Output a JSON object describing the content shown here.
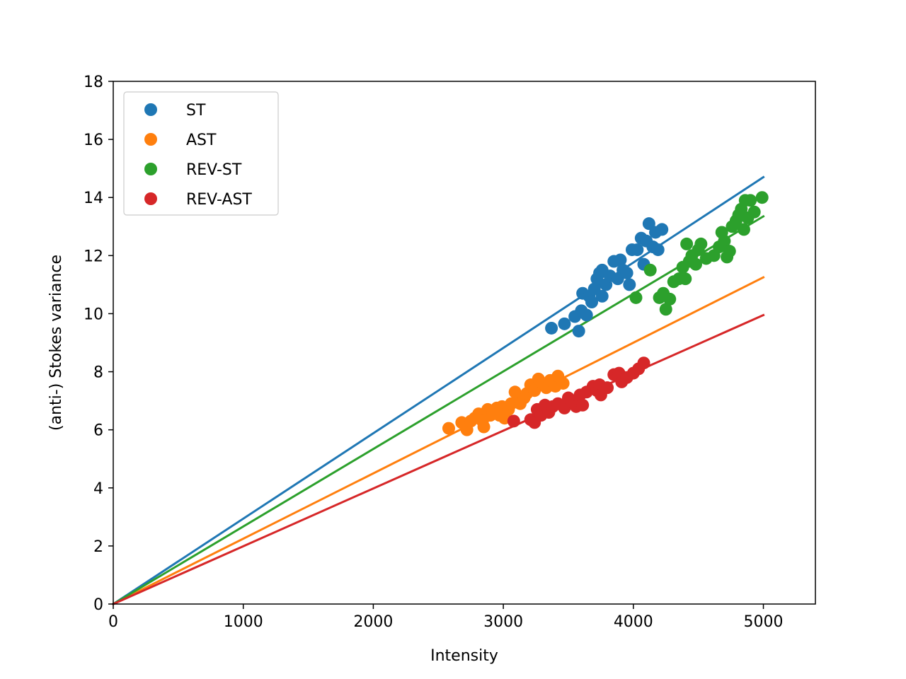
{
  "chart_data": {
    "type": "scatter",
    "xlabel": "Intensity",
    "ylabel": "(anti-) Stokes variance",
    "xlim": [
      0,
      5400
    ],
    "ylim": [
      0,
      18
    ],
    "xticks": [
      0,
      1000,
      2000,
      3000,
      4000,
      5000
    ],
    "yticks": [
      0,
      2,
      4,
      6,
      8,
      10,
      12,
      14,
      16,
      18
    ],
    "grid": false,
    "legend_position": "upper-left",
    "series": [
      {
        "name": "ST",
        "color": "#1f77b4",
        "fit_line": {
          "x": [
            0,
            5000
          ],
          "y": [
            0,
            14.7
          ]
        },
        "points": [
          [
            3370,
            9.5
          ],
          [
            3470,
            9.65
          ],
          [
            3550,
            9.9
          ],
          [
            3580,
            9.4
          ],
          [
            3600,
            10.1
          ],
          [
            3640,
            9.95
          ],
          [
            3610,
            10.7
          ],
          [
            3660,
            10.6
          ],
          [
            3680,
            10.4
          ],
          [
            3700,
            10.85
          ],
          [
            3720,
            11.2
          ],
          [
            3740,
            11.4
          ],
          [
            3760,
            11.5
          ],
          [
            3760,
            10.6
          ],
          [
            3790,
            11.0
          ],
          [
            3820,
            11.3
          ],
          [
            3850,
            11.8
          ],
          [
            3880,
            11.2
          ],
          [
            3900,
            11.85
          ],
          [
            3920,
            11.5
          ],
          [
            3950,
            11.4
          ],
          [
            3970,
            11.0
          ],
          [
            3990,
            12.2
          ],
          [
            4030,
            12.2
          ],
          [
            4060,
            12.6
          ],
          [
            4080,
            11.7
          ],
          [
            4100,
            12.5
          ],
          [
            4120,
            13.1
          ],
          [
            4150,
            12.3
          ],
          [
            4170,
            12.8
          ],
          [
            4190,
            12.2
          ],
          [
            4220,
            12.9
          ]
        ]
      },
      {
        "name": "AST",
        "color": "#ff7f0e",
        "fit_line": {
          "x": [
            0,
            5000
          ],
          "y": [
            0,
            11.25
          ]
        },
        "points": [
          [
            2580,
            6.05
          ],
          [
            2680,
            6.25
          ],
          [
            2720,
            6.0
          ],
          [
            2750,
            6.3
          ],
          [
            2780,
            6.4
          ],
          [
            2810,
            6.55
          ],
          [
            2840,
            6.3
          ],
          [
            2850,
            6.1
          ],
          [
            2880,
            6.7
          ],
          [
            2900,
            6.5
          ],
          [
            2920,
            6.6
          ],
          [
            2950,
            6.75
          ],
          [
            2970,
            6.5
          ],
          [
            2990,
            6.8
          ],
          [
            3010,
            6.4
          ],
          [
            3040,
            6.7
          ],
          [
            3060,
            6.9
          ],
          [
            3090,
            7.3
          ],
          [
            3110,
            7.05
          ],
          [
            3130,
            6.9
          ],
          [
            3160,
            7.1
          ],
          [
            3180,
            7.25
          ],
          [
            3210,
            7.55
          ],
          [
            3240,
            7.35
          ],
          [
            3270,
            7.75
          ],
          [
            3300,
            7.6
          ],
          [
            3330,
            7.45
          ],
          [
            3360,
            7.7
          ],
          [
            3400,
            7.5
          ],
          [
            3420,
            7.85
          ],
          [
            3460,
            7.6
          ]
        ]
      },
      {
        "name": "REV-ST",
        "color": "#2ca02c",
        "fit_line": {
          "x": [
            0,
            5000
          ],
          "y": [
            0,
            13.35
          ]
        },
        "points": [
          [
            4020,
            10.55
          ],
          [
            4130,
            11.5
          ],
          [
            4200,
            10.55
          ],
          [
            4230,
            10.7
          ],
          [
            4250,
            10.15
          ],
          [
            4280,
            10.5
          ],
          [
            4310,
            11.1
          ],
          [
            4350,
            11.2
          ],
          [
            4380,
            11.6
          ],
          [
            4400,
            11.2
          ],
          [
            4410,
            12.4
          ],
          [
            4430,
            11.8
          ],
          [
            4450,
            12.0
          ],
          [
            4480,
            11.7
          ],
          [
            4500,
            12.2
          ],
          [
            4520,
            12.4
          ],
          [
            4560,
            11.9
          ],
          [
            4620,
            12.0
          ],
          [
            4660,
            12.3
          ],
          [
            4680,
            12.8
          ],
          [
            4700,
            12.5
          ],
          [
            4720,
            11.95
          ],
          [
            4740,
            12.15
          ],
          [
            4760,
            13.0
          ],
          [
            4790,
            13.2
          ],
          [
            4810,
            13.4
          ],
          [
            4830,
            13.6
          ],
          [
            4850,
            12.9
          ],
          [
            4860,
            13.9
          ],
          [
            4880,
            13.3
          ],
          [
            4900,
            13.9
          ],
          [
            4930,
            13.5
          ],
          [
            4990,
            14.0
          ]
        ]
      },
      {
        "name": "REV-AST",
        "color": "#d62728",
        "fit_line": {
          "x": [
            0,
            5000
          ],
          "y": [
            0,
            9.95
          ]
        },
        "points": [
          [
            3080,
            6.3
          ],
          [
            3210,
            6.35
          ],
          [
            3240,
            6.25
          ],
          [
            3260,
            6.7
          ],
          [
            3290,
            6.5
          ],
          [
            3320,
            6.85
          ],
          [
            3350,
            6.6
          ],
          [
            3380,
            6.8
          ],
          [
            3420,
            6.9
          ],
          [
            3470,
            6.75
          ],
          [
            3500,
            7.1
          ],
          [
            3530,
            6.95
          ],
          [
            3560,
            6.8
          ],
          [
            3590,
            7.2
          ],
          [
            3610,
            6.85
          ],
          [
            3640,
            7.3
          ],
          [
            3690,
            7.5
          ],
          [
            3720,
            7.35
          ],
          [
            3740,
            7.55
          ],
          [
            3750,
            7.2
          ],
          [
            3800,
            7.45
          ],
          [
            3850,
            7.9
          ],
          [
            3890,
            7.95
          ],
          [
            3910,
            7.65
          ],
          [
            3950,
            7.8
          ],
          [
            4000,
            7.95
          ],
          [
            4040,
            8.1
          ],
          [
            4080,
            8.3
          ]
        ]
      }
    ]
  }
}
